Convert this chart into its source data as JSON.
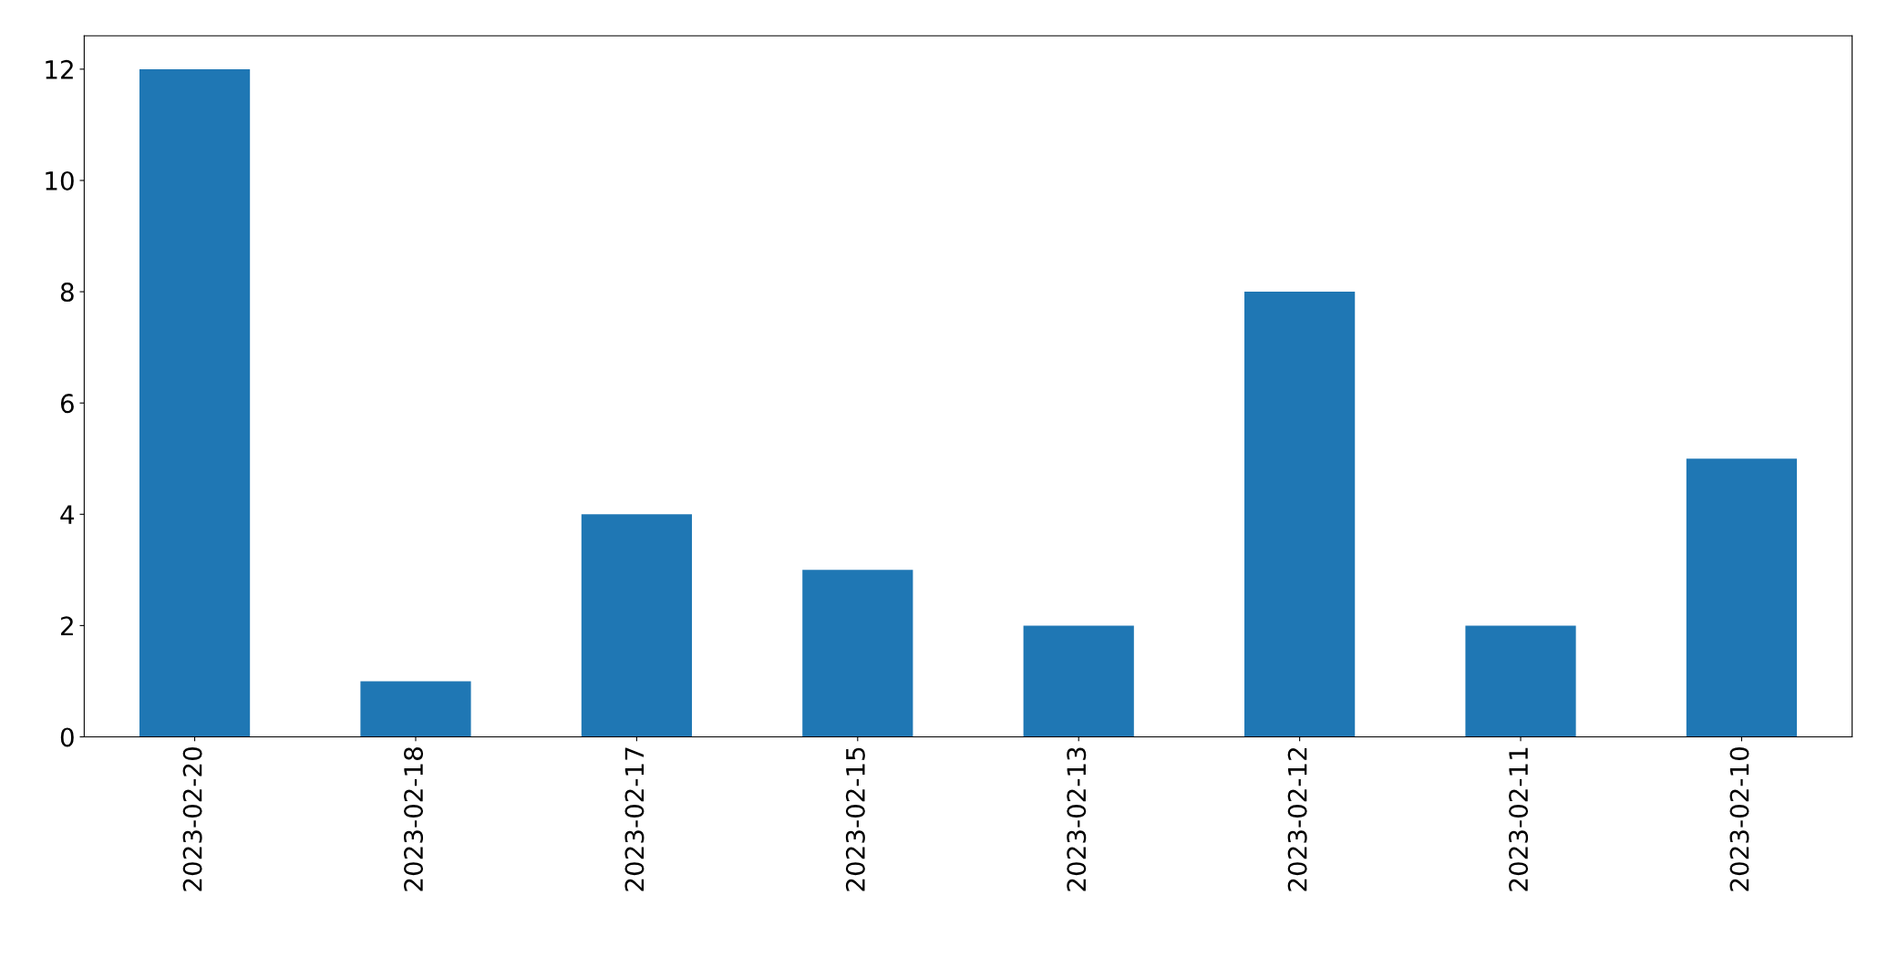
{
  "chart_data": {
    "type": "bar",
    "categories": [
      "2023-02-20",
      "2023-02-18",
      "2023-02-17",
      "2023-02-15",
      "2023-02-13",
      "2023-02-12",
      "2023-02-11",
      "2023-02-10"
    ],
    "values": [
      12,
      1,
      4,
      3,
      2,
      8,
      2,
      5
    ],
    "color": "#1f77b4",
    "ylim": [
      0,
      12.6
    ],
    "yticks": [
      0,
      2,
      4,
      6,
      8,
      10,
      12
    ],
    "grid": false,
    "legend": false
  }
}
